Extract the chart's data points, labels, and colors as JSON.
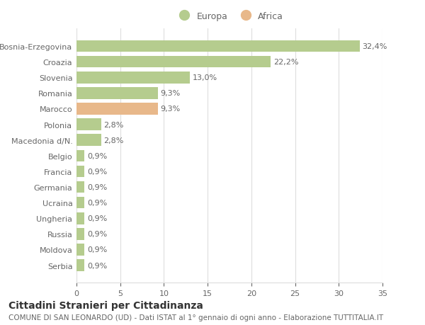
{
  "categories": [
    "Bosnia-Erzegovina",
    "Croazia",
    "Slovenia",
    "Romania",
    "Marocco",
    "Polonia",
    "Macedonia d/N.",
    "Belgio",
    "Francia",
    "Germania",
    "Ucraina",
    "Ungheria",
    "Russia",
    "Moldova",
    "Serbia"
  ],
  "values": [
    32.4,
    22.2,
    13.0,
    9.3,
    9.3,
    2.8,
    2.8,
    0.9,
    0.9,
    0.9,
    0.9,
    0.9,
    0.9,
    0.9,
    0.9
  ],
  "labels": [
    "32,4%",
    "22,2%",
    "13,0%",
    "9,3%",
    "9,3%",
    "2,8%",
    "2,8%",
    "0,9%",
    "0,9%",
    "0,9%",
    "0,9%",
    "0,9%",
    "0,9%",
    "0,9%",
    "0,9%"
  ],
  "colors": [
    "#b5cc8e",
    "#b5cc8e",
    "#b5cc8e",
    "#b5cc8e",
    "#e8b88a",
    "#b5cc8e",
    "#b5cc8e",
    "#b5cc8e",
    "#b5cc8e",
    "#b5cc8e",
    "#b5cc8e",
    "#b5cc8e",
    "#b5cc8e",
    "#b5cc8e",
    "#b5cc8e"
  ],
  "europa_color": "#b5cc8e",
  "africa_color": "#e8b88a",
  "background_color": "#ffffff",
  "grid_color": "#dddddd",
  "title_main": "Cittadini Stranieri per Cittadinanza",
  "title_sub": "COMUNE DI SAN LEONARDO (UD) - Dati ISTAT al 1° gennaio di ogni anno - Elaborazione TUTTITALIA.IT",
  "xlim": [
    0,
    35
  ],
  "xticks": [
    0,
    5,
    10,
    15,
    20,
    25,
    30,
    35
  ],
  "text_color": "#666666",
  "label_fontsize": 8,
  "tick_fontsize": 8,
  "bar_height": 0.75,
  "legend_fontsize": 9,
  "title_fontsize": 10,
  "subtitle_fontsize": 7.5
}
